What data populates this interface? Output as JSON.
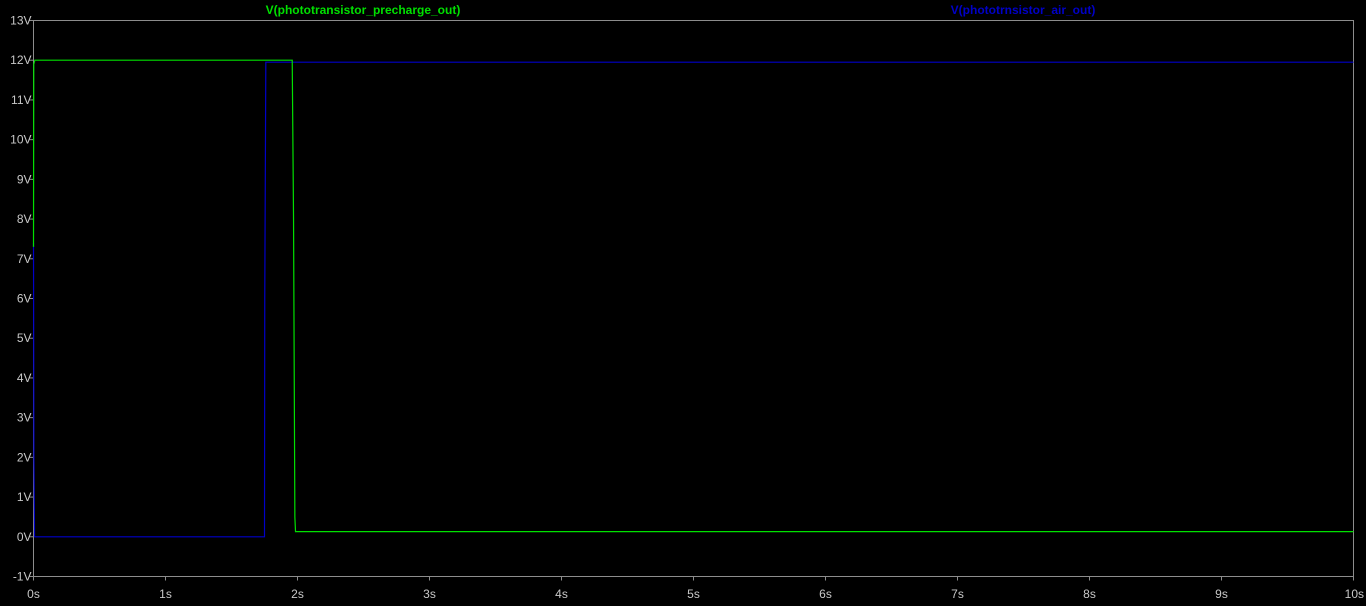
{
  "colors": {
    "background": "#000000",
    "frame": "#8c8c8c",
    "tick_text": "#c8c8c8",
    "series_precharge": "#00e000",
    "series_air": "#0000c8"
  },
  "chart_data": {
    "type": "line",
    "title": "",
    "xlabel": "",
    "ylabel": "",
    "xlim": [
      0,
      10
    ],
    "ylim": [
      -1,
      13
    ],
    "grid": false,
    "x_ticks": [
      0,
      1,
      2,
      3,
      4,
      5,
      6,
      7,
      8,
      9,
      10
    ],
    "x_tick_labels": [
      "0s",
      "1s",
      "2s",
      "3s",
      "4s",
      "5s",
      "6s",
      "7s",
      "8s",
      "9s",
      "10s"
    ],
    "y_ticks": [
      -1,
      0,
      1,
      2,
      3,
      4,
      5,
      6,
      7,
      8,
      9,
      10,
      11,
      12,
      13
    ],
    "y_tick_labels": [
      "-1V",
      "0V",
      "1V",
      "2V",
      "3V",
      "4V",
      "5V",
      "6V",
      "7V",
      "8V",
      "9V",
      "10V",
      "11V",
      "12V",
      "13V"
    ],
    "legend_placement": "top",
    "series": [
      {
        "name": "V(phototransistor_precharge_out)",
        "color": "#00e000",
        "x": [
          0,
          0.002,
          0.01,
          1.96,
          1.97,
          1.98,
          1.985,
          10
        ],
        "y": [
          7.3,
          11.9,
          12.0,
          12.0,
          8.0,
          0.5,
          0.13,
          0.13
        ]
      },
      {
        "name": "V(phototrnsistor_air_out)",
        "color": "#0000c8",
        "x": [
          0,
          0.003,
          0.008,
          1.75,
          1.752,
          1.76,
          2.0,
          10
        ],
        "y": [
          7.4,
          2.0,
          0.0,
          0.0,
          6.0,
          11.95,
          11.95,
          11.95
        ]
      }
    ]
  }
}
